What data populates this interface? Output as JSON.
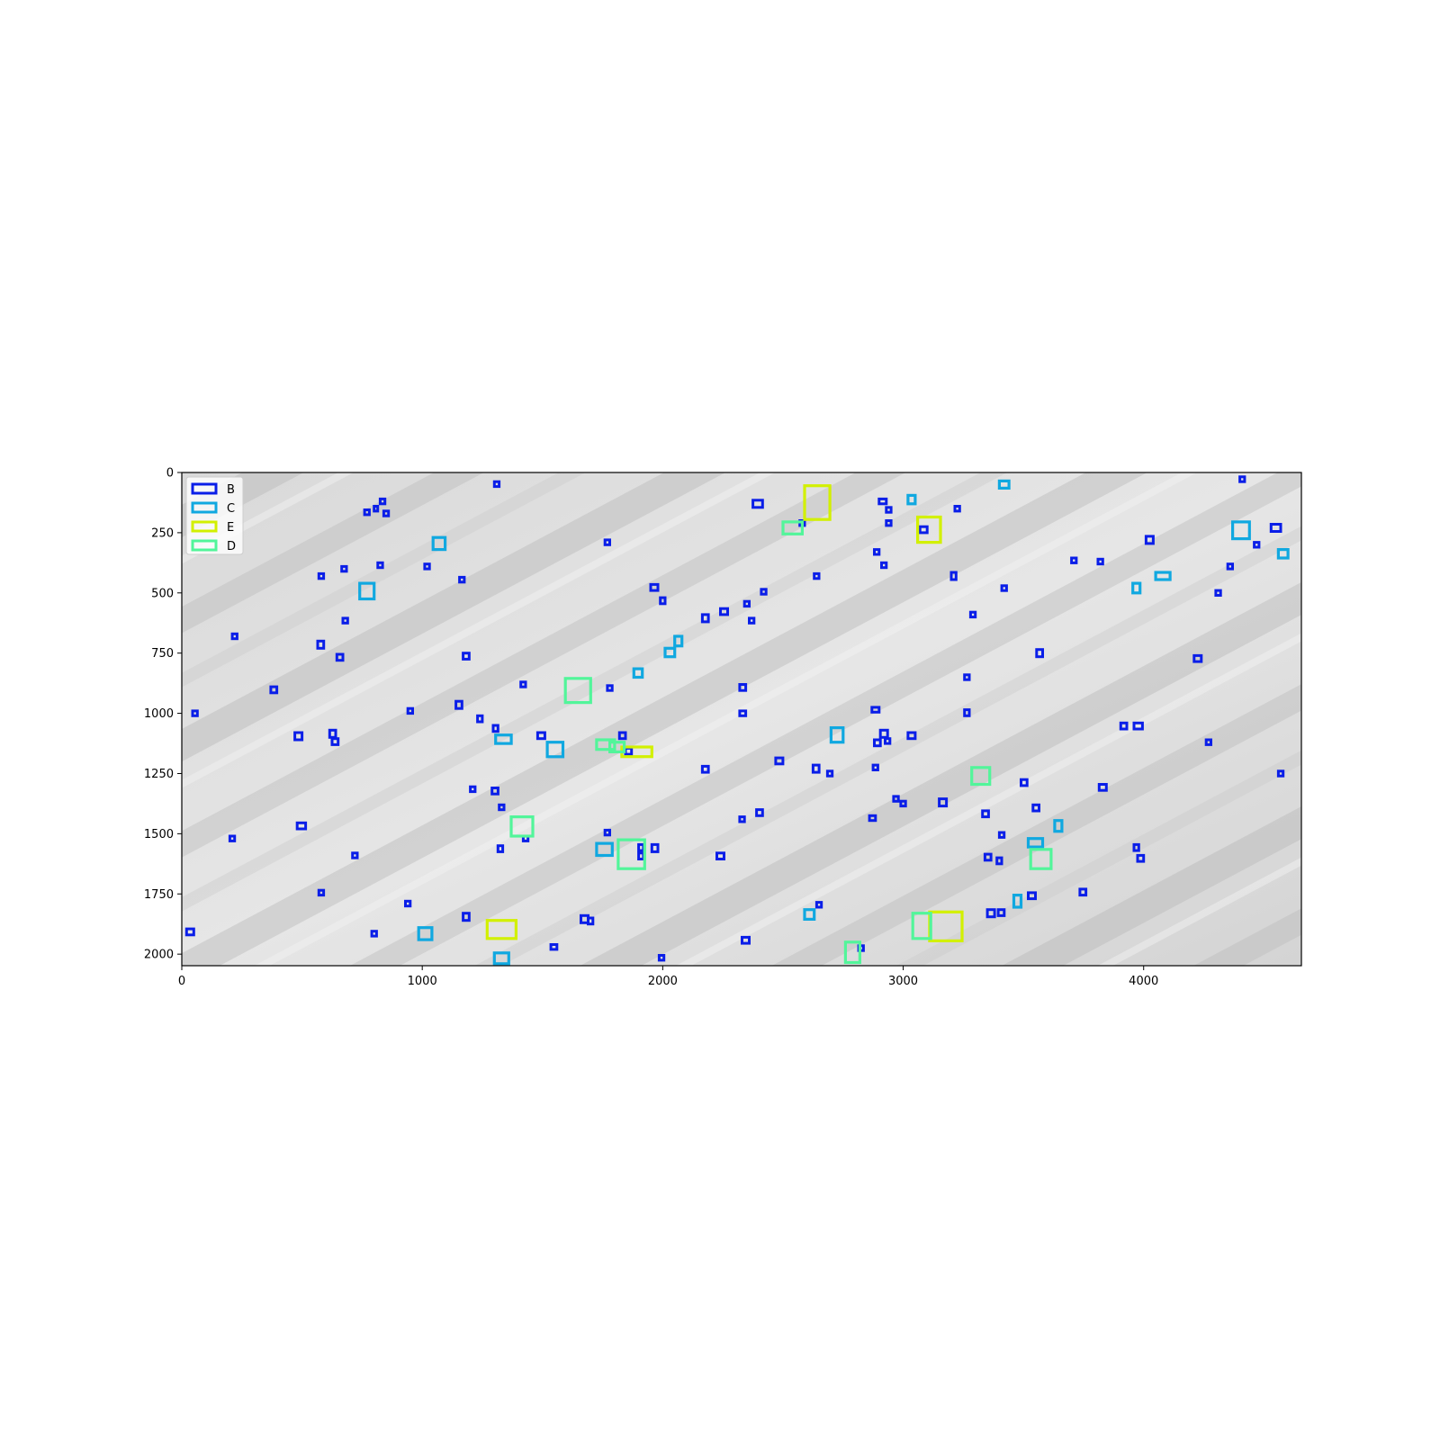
{
  "chart_data": {
    "type": "scatter",
    "title": "",
    "xlabel": "",
    "ylabel": "",
    "xlim": [
      0,
      4656
    ],
    "ylim": [
      2048,
      0
    ],
    "xticks": [
      0,
      1000,
      2000,
      3000,
      4000
    ],
    "yticks": [
      0,
      250,
      500,
      750,
      1000,
      1250,
      1500,
      1750,
      2000
    ],
    "xtick_labels": [
      "0",
      "1000",
      "2000",
      "3000",
      "4000"
    ],
    "ytick_labels": [
      "0",
      "250",
      "500",
      "750",
      "1000",
      "1250",
      "1500",
      "1750",
      "2000"
    ],
    "grid": false,
    "legend_position": "upper-left",
    "background": "grayscale inspection image of a textured surface with diagonal streaks",
    "series": [
      {
        "name": "B",
        "color": "#0a1ee8",
        "boxes": [
          [
            1300,
            38,
            1320,
            58
          ],
          [
            2375,
            115,
            2415,
            145
          ],
          [
            2570,
            200,
            2590,
            220
          ],
          [
            2900,
            110,
            2930,
            130
          ],
          [
            2930,
            145,
            2950,
            165
          ],
          [
            2930,
            200,
            2950,
            220
          ],
          [
            3215,
            140,
            3235,
            160
          ],
          [
            760,
            155,
            780,
            175
          ],
          [
            800,
            140,
            815,
            160
          ],
          [
            825,
            110,
            845,
            130
          ],
          [
            840,
            160,
            860,
            180
          ],
          [
            4400,
            18,
            4420,
            38
          ],
          [
            4530,
            215,
            4570,
            245
          ],
          [
            4010,
            265,
            4040,
            295
          ],
          [
            4460,
            290,
            4480,
            310
          ],
          [
            3070,
            225,
            3100,
            250
          ],
          [
            1760,
            280,
            1780,
            300
          ],
          [
            570,
            420,
            590,
            440
          ],
          [
            665,
            390,
            685,
            410
          ],
          [
            815,
            375,
            835,
            395
          ],
          [
            1010,
            380,
            1030,
            400
          ],
          [
            1155,
            435,
            1175,
            455
          ],
          [
            2880,
            320,
            2900,
            340
          ],
          [
            2910,
            375,
            2930,
            395
          ],
          [
            2630,
            420,
            2650,
            440
          ],
          [
            3200,
            415,
            3220,
            445
          ],
          [
            3410,
            470,
            3430,
            490
          ],
          [
            3700,
            355,
            3720,
            375
          ],
          [
            3810,
            360,
            3830,
            380
          ],
          [
            4350,
            380,
            4370,
            400
          ],
          [
            4300,
            490,
            4320,
            510
          ],
          [
            1950,
            465,
            1980,
            490
          ],
          [
            1990,
            520,
            2010,
            545
          ],
          [
            2340,
            535,
            2360,
            555
          ],
          [
            2410,
            485,
            2430,
            505
          ],
          [
            2165,
            590,
            2190,
            620
          ],
          [
            2240,
            565,
            2270,
            590
          ],
          [
            2360,
            605,
            2380,
            625
          ],
          [
            3280,
            580,
            3300,
            600
          ],
          [
            210,
            670,
            230,
            690
          ],
          [
            565,
            700,
            590,
            730
          ],
          [
            645,
            755,
            670,
            780
          ],
          [
            670,
            605,
            690,
            625
          ],
          [
            1170,
            750,
            1195,
            775
          ],
          [
            3555,
            735,
            3580,
            765
          ],
          [
            4210,
            760,
            4240,
            785
          ],
          [
            370,
            890,
            395,
            915
          ],
          [
            1410,
            870,
            1430,
            890
          ],
          [
            1770,
            885,
            1790,
            905
          ],
          [
            2320,
            880,
            2345,
            905
          ],
          [
            3255,
            840,
            3275,
            860
          ],
          [
            45,
            990,
            65,
            1010
          ],
          [
            940,
            980,
            960,
            1000
          ],
          [
            1140,
            950,
            1165,
            980
          ],
          [
            1230,
            1010,
            1250,
            1035
          ],
          [
            1295,
            1050,
            1315,
            1075
          ],
          [
            2320,
            990,
            2345,
            1010
          ],
          [
            2870,
            975,
            2900,
            995
          ],
          [
            3255,
            985,
            3275,
            1010
          ],
          [
            3905,
            1040,
            3930,
            1065
          ],
          [
            3960,
            1040,
            3995,
            1065
          ],
          [
            470,
            1080,
            500,
            1110
          ],
          [
            615,
            1070,
            640,
            1100
          ],
          [
            625,
            1105,
            650,
            1130
          ],
          [
            1480,
            1080,
            1510,
            1105
          ],
          [
            1820,
            1080,
            1845,
            1105
          ],
          [
            1845,
            1145,
            1870,
            1170
          ],
          [
            2880,
            1110,
            2905,
            1135
          ],
          [
            2905,
            1070,
            2935,
            1100
          ],
          [
            2925,
            1105,
            2945,
            1125
          ],
          [
            3020,
            1080,
            3050,
            1105
          ],
          [
            4260,
            1110,
            4280,
            1130
          ],
          [
            2165,
            1220,
            2190,
            1245
          ],
          [
            2470,
            1185,
            2500,
            1210
          ],
          [
            2625,
            1215,
            2650,
            1245
          ],
          [
            2685,
            1240,
            2705,
            1260
          ],
          [
            2875,
            1215,
            2895,
            1235
          ],
          [
            4560,
            1240,
            4580,
            1260
          ],
          [
            1200,
            1305,
            1220,
            1325
          ],
          [
            1290,
            1310,
            1315,
            1335
          ],
          [
            1320,
            1380,
            1340,
            1400
          ],
          [
            2960,
            1345,
            2980,
            1365
          ],
          [
            2990,
            1365,
            3010,
            1385
          ],
          [
            3490,
            1275,
            3515,
            1300
          ],
          [
            3150,
            1355,
            3180,
            1385
          ],
          [
            3815,
            1295,
            3845,
            1320
          ],
          [
            3330,
            1405,
            3355,
            1430
          ],
          [
            3540,
            1380,
            3565,
            1405
          ],
          [
            480,
            1455,
            515,
            1480
          ],
          [
            2390,
            1400,
            2415,
            1425
          ],
          [
            2320,
            1430,
            2340,
            1450
          ],
          [
            2860,
            1425,
            2885,
            1445
          ],
          [
            200,
            1510,
            220,
            1530
          ],
          [
            1420,
            1510,
            1440,
            1530
          ],
          [
            1760,
            1485,
            1780,
            1505
          ],
          [
            1315,
            1550,
            1335,
            1575
          ],
          [
            1900,
            1545,
            1920,
            1570
          ],
          [
            1955,
            1545,
            1980,
            1575
          ],
          [
            710,
            1580,
            730,
            1600
          ],
          [
            1900,
            1580,
            1920,
            1605
          ],
          [
            2225,
            1580,
            2255,
            1605
          ],
          [
            3340,
            1585,
            3365,
            1610
          ],
          [
            3390,
            1600,
            3410,
            1625
          ],
          [
            3400,
            1495,
            3420,
            1515
          ],
          [
            3960,
            1545,
            3980,
            1570
          ],
          [
            3975,
            1590,
            4000,
            1615
          ],
          [
            570,
            1735,
            590,
            1755
          ],
          [
            930,
            1780,
            950,
            1800
          ],
          [
            1170,
            1830,
            1195,
            1860
          ],
          [
            1660,
            1840,
            1690,
            1870
          ],
          [
            1690,
            1850,
            1710,
            1875
          ],
          [
            2640,
            1785,
            2660,
            1805
          ],
          [
            3350,
            1815,
            3380,
            1845
          ],
          [
            3395,
            1815,
            3420,
            1840
          ],
          [
            3520,
            1745,
            3550,
            1770
          ],
          [
            3735,
            1730,
            3760,
            1755
          ],
          [
            20,
            1895,
            50,
            1920
          ],
          [
            790,
            1905,
            810,
            1925
          ],
          [
            1535,
            1960,
            1560,
            1980
          ],
          [
            1985,
            2005,
            2005,
            2025
          ],
          [
            2330,
            1930,
            2360,
            1955
          ],
          [
            2815,
            1965,
            2835,
            1985
          ]
        ]
      },
      {
        "name": "C",
        "color": "#10a8e0",
        "boxes": [
          [
            3400,
            35,
            3440,
            65
          ],
          [
            3020,
            95,
            3050,
            130
          ],
          [
            1045,
            270,
            1095,
            320
          ],
          [
            740,
            460,
            800,
            525
          ],
          [
            4370,
            205,
            4440,
            275
          ],
          [
            4560,
            320,
            4600,
            355
          ],
          [
            4050,
            415,
            4110,
            445
          ],
          [
            3955,
            460,
            3985,
            500
          ],
          [
            2010,
            730,
            2050,
            765
          ],
          [
            2050,
            680,
            2080,
            720
          ],
          [
            1880,
            815,
            1915,
            850
          ],
          [
            1305,
            1090,
            1370,
            1125
          ],
          [
            1520,
            1120,
            1585,
            1180
          ],
          [
            2700,
            1060,
            2750,
            1120
          ],
          [
            3630,
            1445,
            3660,
            1490
          ],
          [
            3520,
            1520,
            3580,
            1555
          ],
          [
            1725,
            1540,
            1790,
            1590
          ],
          [
            3460,
            1755,
            3490,
            1805
          ],
          [
            2590,
            1815,
            2630,
            1855
          ],
          [
            985,
            1890,
            1040,
            1940
          ],
          [
            1300,
            1995,
            1360,
            2040
          ]
        ]
      },
      {
        "name": "E",
        "color": "#d2f000",
        "boxes": [
          [
            2590,
            55,
            2695,
            195
          ],
          [
            3060,
            185,
            3155,
            290
          ],
          [
            1830,
            1140,
            1955,
            1180
          ],
          [
            1270,
            1860,
            1390,
            1935
          ],
          [
            3110,
            1825,
            3245,
            1945
          ]
        ]
      },
      {
        "name": "D",
        "color": "#52f59a",
        "boxes": [
          [
            2500,
            205,
            2580,
            255
          ],
          [
            1595,
            855,
            1700,
            955
          ],
          [
            1725,
            1110,
            1800,
            1150
          ],
          [
            1780,
            1120,
            1840,
            1160
          ],
          [
            1370,
            1430,
            1460,
            1510
          ],
          [
            1815,
            1525,
            1925,
            1645
          ],
          [
            3285,
            1225,
            3360,
            1295
          ],
          [
            3530,
            1565,
            3615,
            1645
          ],
          [
            3040,
            1830,
            3115,
            1935
          ],
          [
            2760,
            1950,
            2820,
            2035
          ]
        ]
      }
    ]
  }
}
